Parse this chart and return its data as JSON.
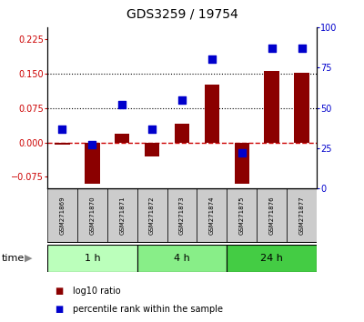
{
  "title": "GDS3259 / 19754",
  "samples": [
    "GSM271869",
    "GSM271870",
    "GSM271871",
    "GSM271872",
    "GSM271873",
    "GSM271874",
    "GSM271875",
    "GSM271876",
    "GSM271877"
  ],
  "log10_ratio": [
    -0.005,
    -0.09,
    0.018,
    -0.03,
    0.04,
    0.125,
    -0.09,
    0.155,
    0.152
  ],
  "percentile_rank_pct": [
    37,
    27,
    52,
    37,
    55,
    80,
    22,
    87,
    87
  ],
  "groups": [
    {
      "label": "1 h",
      "indices": [
        0,
        1,
        2
      ],
      "color": "#bbffbb"
    },
    {
      "label": "4 h",
      "indices": [
        3,
        4,
        5
      ],
      "color": "#88ee88"
    },
    {
      "label": "24 h",
      "indices": [
        6,
        7,
        8
      ],
      "color": "#44cc44"
    }
  ],
  "ylim_left": [
    -0.1,
    0.25
  ],
  "ylim_right": [
    0,
    100
  ],
  "yticks_left": [
    -0.075,
    0,
    0.075,
    0.15,
    0.225
  ],
  "yticks_right": [
    0,
    25,
    50,
    75,
    100
  ],
  "hlines": [
    0.075,
    0.15
  ],
  "bar_color": "#8b0000",
  "dot_color": "#0000cc",
  "bar_width": 0.5,
  "dot_size": 30,
  "zero_line_color": "#cc0000",
  "left_label_color": "#cc0000",
  "right_label_color": "#0000cc",
  "title_fontsize": 10,
  "tick_fontsize": 7,
  "sample_fontsize": 5,
  "time_label_fontsize": 8,
  "group_fontsize": 8,
  "legend_fontsize": 7
}
